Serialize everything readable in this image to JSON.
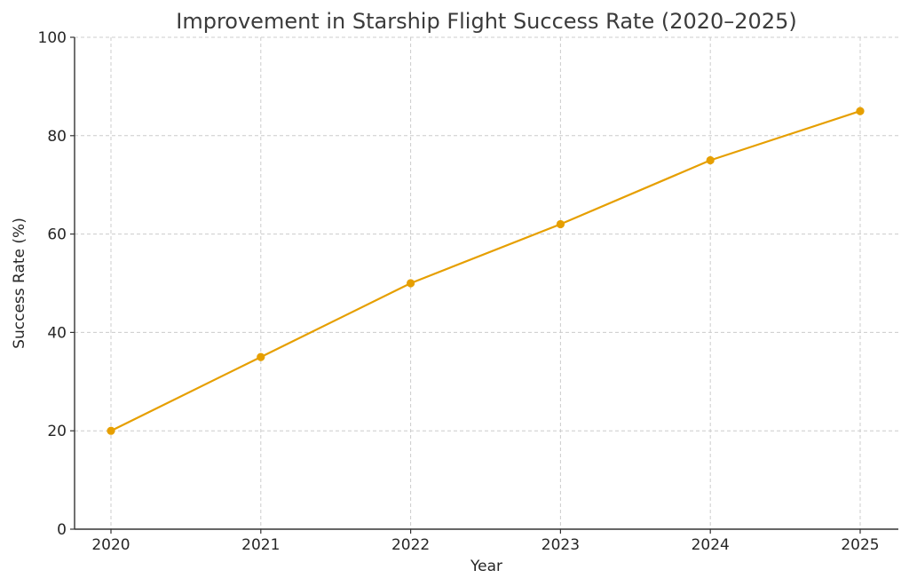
{
  "chart_data": {
    "type": "line",
    "title": "Improvement in Starship Flight Success Rate (2020–2025)",
    "xlabel": "Year",
    "ylabel": "Success Rate (%)",
    "x": [
      "2020",
      "2021",
      "2022",
      "2023",
      "2024",
      "2025"
    ],
    "series": [
      {
        "values": [
          20,
          35,
          50,
          62,
          75,
          85
        ],
        "color": "#E69F00"
      }
    ],
    "ylim": [
      0,
      100
    ],
    "yticks": [
      0,
      20,
      40,
      60,
      80,
      100
    ],
    "grid": true,
    "marker": "circle"
  }
}
